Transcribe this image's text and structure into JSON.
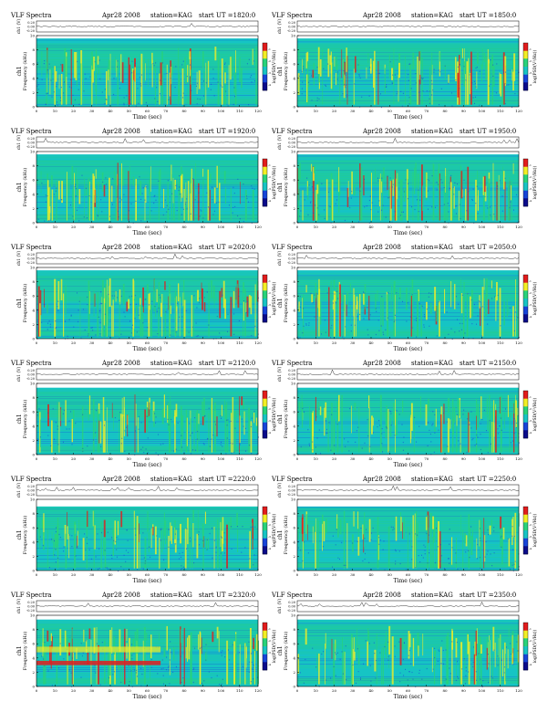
{
  "page": {
    "panel_title": "VLF Spectra",
    "date": "Apr28 2008",
    "station": "station=KAG",
    "start_prefix": "start  UT  =",
    "time_axis_label": "Time  (sec)",
    "freq_axis_label": "Frequency  (kHz)",
    "channel_label": "ch1",
    "voltage_axis_label": "ch1 (V)",
    "colorbar_label": "log(PSD(V²/Hz))",
    "colorbar_ticks": [
      "-1",
      "-2",
      "-3",
      "-4"
    ]
  },
  "chart_data": [
    {
      "type": "heatmap",
      "title": "VLF Spectra",
      "start_ut": "1820:0",
      "intensity": 0.55,
      "band_top_khz": 9.6,
      "row": 0,
      "col": 0
    },
    {
      "type": "heatmap",
      "title": "VLF Spectra",
      "start_ut": "1850:0",
      "intensity": 0.55,
      "band_top_khz": 9.6,
      "row": 0,
      "col": 1
    },
    {
      "type": "heatmap",
      "title": "VLF Spectra",
      "start_ut": "1920:0",
      "intensity": 0.45,
      "band_top_khz": 9.6,
      "row": 1,
      "col": 0
    },
    {
      "type": "heatmap",
      "title": "VLF Spectra",
      "start_ut": "1950:0",
      "intensity": 0.5,
      "band_top_khz": 9.6,
      "row": 1,
      "col": 1
    },
    {
      "type": "heatmap",
      "title": "VLF Spectra",
      "start_ut": "2020:0",
      "intensity": 0.5,
      "band_top_khz": 9.6,
      "row": 2,
      "col": 0
    },
    {
      "type": "heatmap",
      "title": "VLF Spectra",
      "start_ut": "2050:0",
      "intensity": 0.35,
      "band_top_khz": 9.6,
      "row": 2,
      "col": 1
    },
    {
      "type": "heatmap",
      "title": "VLF Spectra",
      "start_ut": "2120:0",
      "intensity": 0.4,
      "band_top_khz": 9.4,
      "row": 3,
      "col": 0
    },
    {
      "type": "heatmap",
      "title": "VLF Spectra",
      "start_ut": "2150:0",
      "intensity": 0.35,
      "band_top_khz": 9.4,
      "row": 3,
      "col": 1
    },
    {
      "type": "heatmap",
      "title": "VLF Spectra",
      "start_ut": "2220:0",
      "intensity": 0.35,
      "band_top_khz": 9.0,
      "row": 4,
      "col": 0
    },
    {
      "type": "heatmap",
      "title": "VLF Spectra",
      "start_ut": "2250:0",
      "intensity": 0.3,
      "band_top_khz": 9.0,
      "row": 4,
      "col": 1
    },
    {
      "type": "heatmap",
      "title": "VLF Spectra",
      "start_ut": "2320:0",
      "intensity": 0.45,
      "band_top_khz": 9.4,
      "row": 5,
      "col": 0,
      "special_band_khz": [
        3.0,
        3.6
      ]
    },
    {
      "type": "heatmap",
      "title": "VLF Spectra",
      "start_ut": "2350:0",
      "intensity": 0.3,
      "band_top_khz": 9.4,
      "row": 5,
      "col": 1
    }
  ],
  "axes": {
    "x_range": [
      0,
      120
    ],
    "x_ticks": [
      "0",
      "10",
      "20",
      "30",
      "40",
      "50",
      "60",
      "70",
      "80",
      "90",
      "100",
      "110",
      "120"
    ],
    "y_range": [
      0,
      10
    ],
    "y_ticks": [
      "0",
      "2",
      "4",
      "6",
      "8",
      "10"
    ],
    "voltage_ticks": [
      "0.20",
      "0.00",
      "-0.20"
    ]
  },
  "colors": {
    "background": "#16c4c4",
    "low": "#1744d8",
    "mid": "#28d27a",
    "high": "#f2ee25",
    "peak": "#e21c1c",
    "colorbar": [
      "#e21c1c",
      "#f2ee25",
      "#28d27a",
      "#16c4c4",
      "#1744d8",
      "#0b0b8a"
    ]
  }
}
